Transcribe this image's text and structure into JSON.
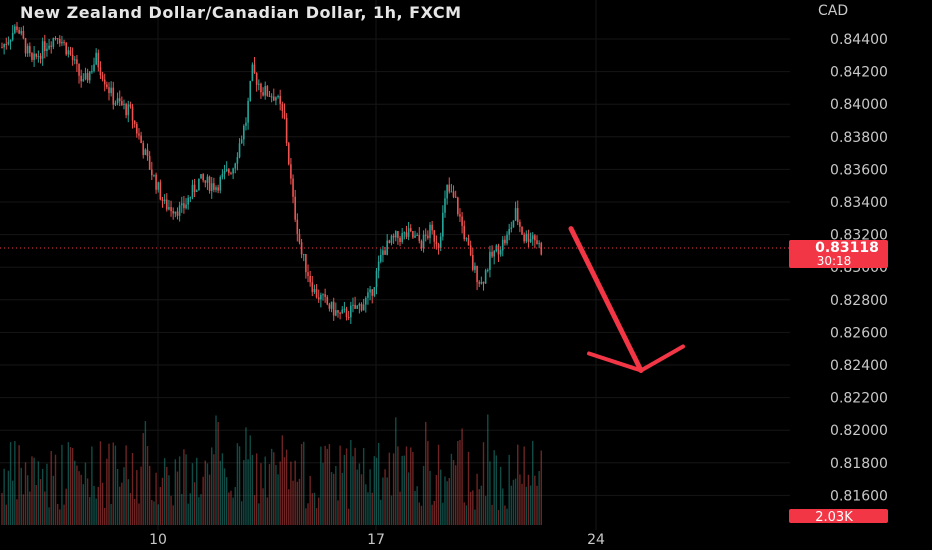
{
  "header": {
    "title": "New Zealand Dollar/Canadian Dollar, 1h, FXCM",
    "currency": "CAD"
  },
  "price_badge": {
    "price": "0.83118",
    "countdown": "30:18"
  },
  "volume_badge": {
    "label": "2.03K"
  },
  "colors": {
    "up": "#26a69a",
    "down": "#ef5350",
    "badge": "#f23645",
    "grid": "#161616",
    "arrow": "#f23645"
  },
  "chart_data": {
    "type": "candlestick",
    "symbol": "NZDCAD",
    "interval": "1h",
    "y_axis": {
      "ticks": [
        0.844,
        0.842,
        0.84,
        0.838,
        0.836,
        0.834,
        0.832,
        0.83,
        0.828,
        0.826,
        0.824,
        0.822,
        0.82,
        0.818,
        0.816
      ],
      "tick_labels": [
        "0.84400",
        "0.84200",
        "0.84000",
        "0.83800",
        "0.83600",
        "0.83400",
        "0.83200",
        "0.83000",
        "0.82800",
        "0.82600",
        "0.82400",
        "0.82200",
        "0.82000",
        "0.81800",
        "0.81600"
      ]
    },
    "x_axis": {
      "tick_labels": [
        "10",
        "17",
        "24"
      ]
    },
    "close_path": [
      [
        0,
        0.8435
      ],
      [
        7,
        0.8448
      ],
      [
        14,
        0.8425
      ],
      [
        20,
        0.8436
      ],
      [
        26,
        0.8443
      ],
      [
        32,
        0.843
      ],
      [
        38,
        0.8412
      ],
      [
        44,
        0.8428
      ],
      [
        52,
        0.8403
      ],
      [
        60,
        0.8395
      ],
      [
        68,
        0.8365
      ],
      [
        76,
        0.8338
      ],
      [
        84,
        0.8335
      ],
      [
        92,
        0.8353
      ],
      [
        100,
        0.835
      ],
      [
        108,
        0.8362
      ],
      [
        114,
        0.839
      ],
      [
        117,
        0.842
      ],
      [
        122,
        0.8408
      ],
      [
        128,
        0.8405
      ],
      [
        132,
        0.839
      ],
      [
        136,
        0.834
      ],
      [
        140,
        0.8308
      ],
      [
        146,
        0.8285
      ],
      [
        152,
        0.8277
      ],
      [
        158,
        0.827
      ],
      [
        166,
        0.8275
      ],
      [
        172,
        0.8282
      ],
      [
        178,
        0.831
      ],
      [
        184,
        0.8318
      ],
      [
        190,
        0.832
      ],
      [
        196,
        0.8315
      ],
      [
        200,
        0.8322
      ],
      [
        204,
        0.8315
      ],
      [
        208,
        0.8348
      ],
      [
        212,
        0.834
      ],
      [
        216,
        0.832
      ],
      [
        220,
        0.83
      ],
      [
        224,
        0.829
      ],
      [
        228,
        0.8305
      ],
      [
        232,
        0.8312
      ],
      [
        236,
        0.8318
      ],
      [
        240,
        0.8333
      ],
      [
        244,
        0.8318
      ],
      [
        248,
        0.832
      ],
      [
        252,
        0.8311
      ]
    ],
    "price_line": 0.83118,
    "projection": {
      "direction": "down",
      "from_price": 0.832,
      "to_price": 0.8244
    }
  }
}
